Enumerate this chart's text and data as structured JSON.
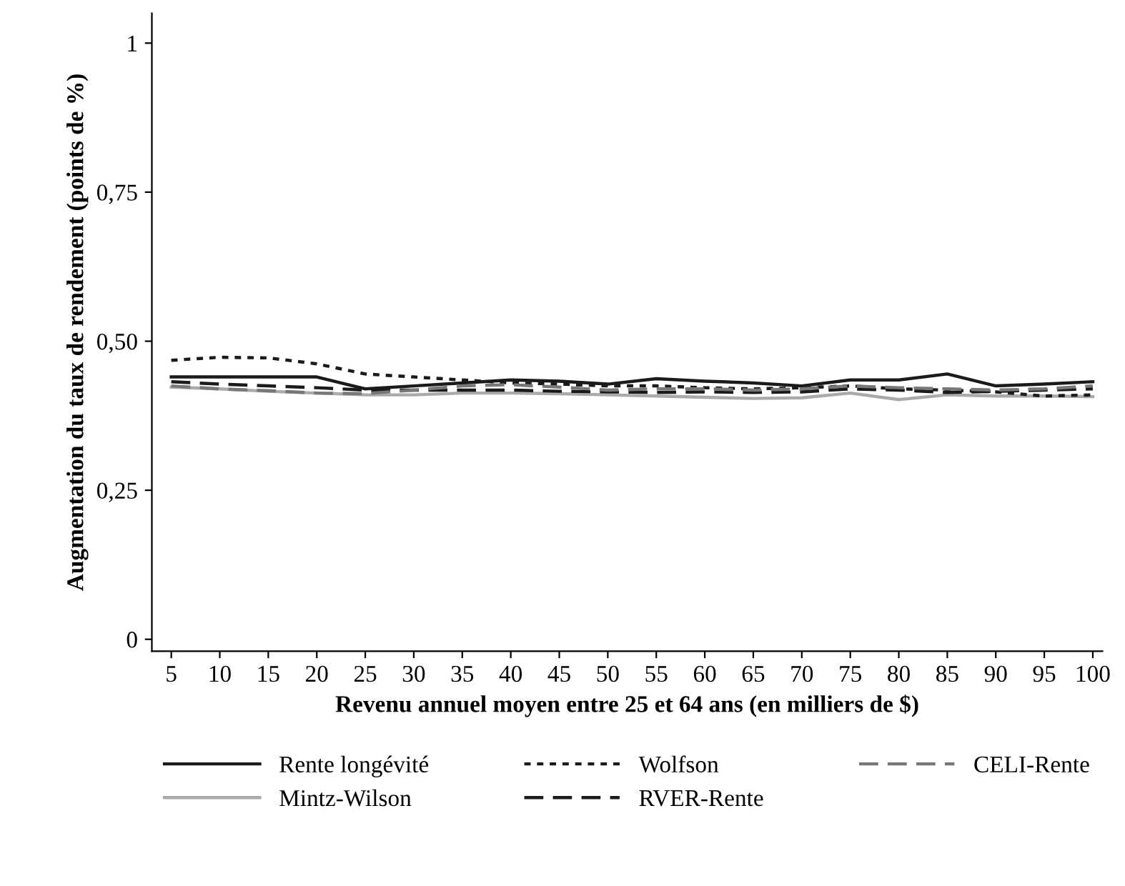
{
  "chart_data": {
    "type": "line",
    "xlabel": "Revenu annuel moyen entre 25 et 64 ans (en milliers de $)",
    "ylabel": "Augmentation du taux de rendement (points de %)",
    "x": [
      5,
      10,
      15,
      20,
      25,
      30,
      35,
      40,
      45,
      50,
      55,
      60,
      65,
      70,
      75,
      80,
      85,
      90,
      95,
      100
    ],
    "xlim": [
      3,
      101
    ],
    "xticks": [
      5,
      10,
      15,
      20,
      25,
      30,
      35,
      40,
      45,
      50,
      55,
      60,
      65,
      70,
      75,
      80,
      85,
      90,
      95,
      100
    ],
    "ylim": [
      -0.02,
      1.05
    ],
    "yticks": [
      0,
      {
        "value": 0.25,
        "label": "0,25"
      },
      {
        "value": 0.5,
        "label": "0,50"
      },
      {
        "value": 0.75,
        "label": "0,75"
      },
      1
    ],
    "grid": false,
    "legend": "bottom",
    "marker": "none",
    "series": [
      {
        "name": "Rente longévité",
        "color": "#1a1a1a",
        "line_style": "solid",
        "values": [
          0.44,
          0.44,
          0.44,
          0.44,
          0.42,
          0.425,
          0.43,
          0.435,
          0.433,
          0.428,
          0.437,
          0.433,
          0.43,
          0.425,
          0.435,
          0.435,
          0.445,
          0.425,
          0.428,
          0.432
        ]
      },
      {
        "name": "Mintz-Wilson",
        "color": "#aaaaaa",
        "line_style": "solid",
        "values": [
          0.423,
          0.42,
          0.416,
          0.413,
          0.41,
          0.41,
          0.413,
          0.413,
          0.412,
          0.41,
          0.408,
          0.406,
          0.404,
          0.405,
          0.413,
          0.402,
          0.41,
          0.408,
          0.408,
          0.407
        ]
      },
      {
        "name": "Wolfson",
        "color": "#1a1a1a",
        "line_style": "dotted",
        "values": [
          0.468,
          0.473,
          0.472,
          0.462,
          0.445,
          0.44,
          0.435,
          0.43,
          0.428,
          0.425,
          0.425,
          0.422,
          0.42,
          0.422,
          0.425,
          0.42,
          0.418,
          0.415,
          0.408,
          0.41
        ]
      },
      {
        "name": "RVER-Rente",
        "color": "#1a1a1a",
        "line_style": "dashed",
        "values": [
          0.432,
          0.428,
          0.425,
          0.422,
          0.418,
          0.418,
          0.418,
          0.418,
          0.416,
          0.415,
          0.414,
          0.415,
          0.414,
          0.415,
          0.42,
          0.418,
          0.414,
          0.416,
          0.418,
          0.42
        ]
      },
      {
        "name": "CELI-Rente",
        "color": "#777777",
        "line_style": "dashed",
        "values": [
          0.425,
          0.42,
          0.417,
          0.413,
          0.412,
          0.418,
          0.425,
          0.427,
          0.423,
          0.418,
          0.42,
          0.42,
          0.418,
          0.42,
          0.425,
          0.422,
          0.42,
          0.418,
          0.42,
          0.425
        ]
      }
    ]
  }
}
